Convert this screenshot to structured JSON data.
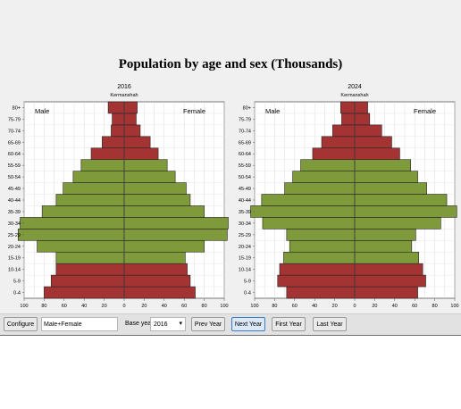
{
  "title": "Population by age and sex (Thousands)",
  "colors": {
    "young": "#a43434",
    "adult": "#7f9a3a",
    "stroke": "#222222"
  },
  "toolbar": {
    "configure_label": "Configure",
    "mode_value": "Male+Female",
    "base_year_label": "Base year",
    "base_year_value": "2016",
    "prev_label": "Prev Year",
    "next_label": "Next Year",
    "first_label": "First Year",
    "last_label": "Last Year"
  },
  "chart_data": [
    {
      "type": "bar",
      "title": "2016",
      "subtitle": "Kermanshah",
      "left_label": "Male",
      "right_label": "Female",
      "categories": [
        "0-4",
        "5-9",
        "10-14",
        "15-19",
        "20-24",
        "25-29",
        "30-34",
        "35-39",
        "40-44",
        "45-49",
        "50-54",
        "55-59",
        "60-64",
        "65-69",
        "70-74",
        "75-79",
        "80+"
      ],
      "series": [
        {
          "name": "Male",
          "values": [
            80,
            73,
            68,
            68,
            87,
            106,
            104,
            82,
            68,
            61,
            51,
            43,
            33,
            22,
            13,
            12,
            16
          ]
        },
        {
          "name": "Female",
          "values": [
            71,
            66,
            63,
            61,
            80,
            103,
            104,
            80,
            66,
            62,
            51,
            43,
            34,
            26,
            16,
            12,
            13
          ]
        }
      ],
      "xlim": [
        -100,
        100
      ],
      "xticks": [
        "100",
        "80",
        "60",
        "40",
        "20",
        "0",
        "20",
        "40",
        "60",
        "80",
        "100"
      ],
      "grid": true
    },
    {
      "type": "bar",
      "title": "2024",
      "subtitle": "Kermanshah",
      "left_label": "Male",
      "right_label": "Female",
      "categories": [
        "0-4",
        "5-9",
        "10-14",
        "15-19",
        "20-24",
        "25-29",
        "30-34",
        "35-39",
        "40-44",
        "45-49",
        "50-54",
        "55-59",
        "60-64",
        "65-69",
        "70-74",
        "75-79",
        "80+"
      ],
      "series": [
        {
          "name": "Male",
          "values": [
            68,
            77,
            75,
            71,
            65,
            68,
            92,
            104,
            93,
            70,
            62,
            54,
            42,
            33,
            22,
            13,
            14
          ]
        },
        {
          "name": "Female",
          "values": [
            63,
            71,
            68,
            64,
            57,
            61,
            86,
            102,
            92,
            72,
            63,
            56,
            45,
            37,
            27,
            15,
            13
          ]
        }
      ],
      "xlim": [
        -100,
        100
      ],
      "xticks": [
        "100",
        "80",
        "60",
        "40",
        "20",
        "0",
        "20",
        "40",
        "60",
        "80",
        "100"
      ],
      "grid": true
    }
  ]
}
